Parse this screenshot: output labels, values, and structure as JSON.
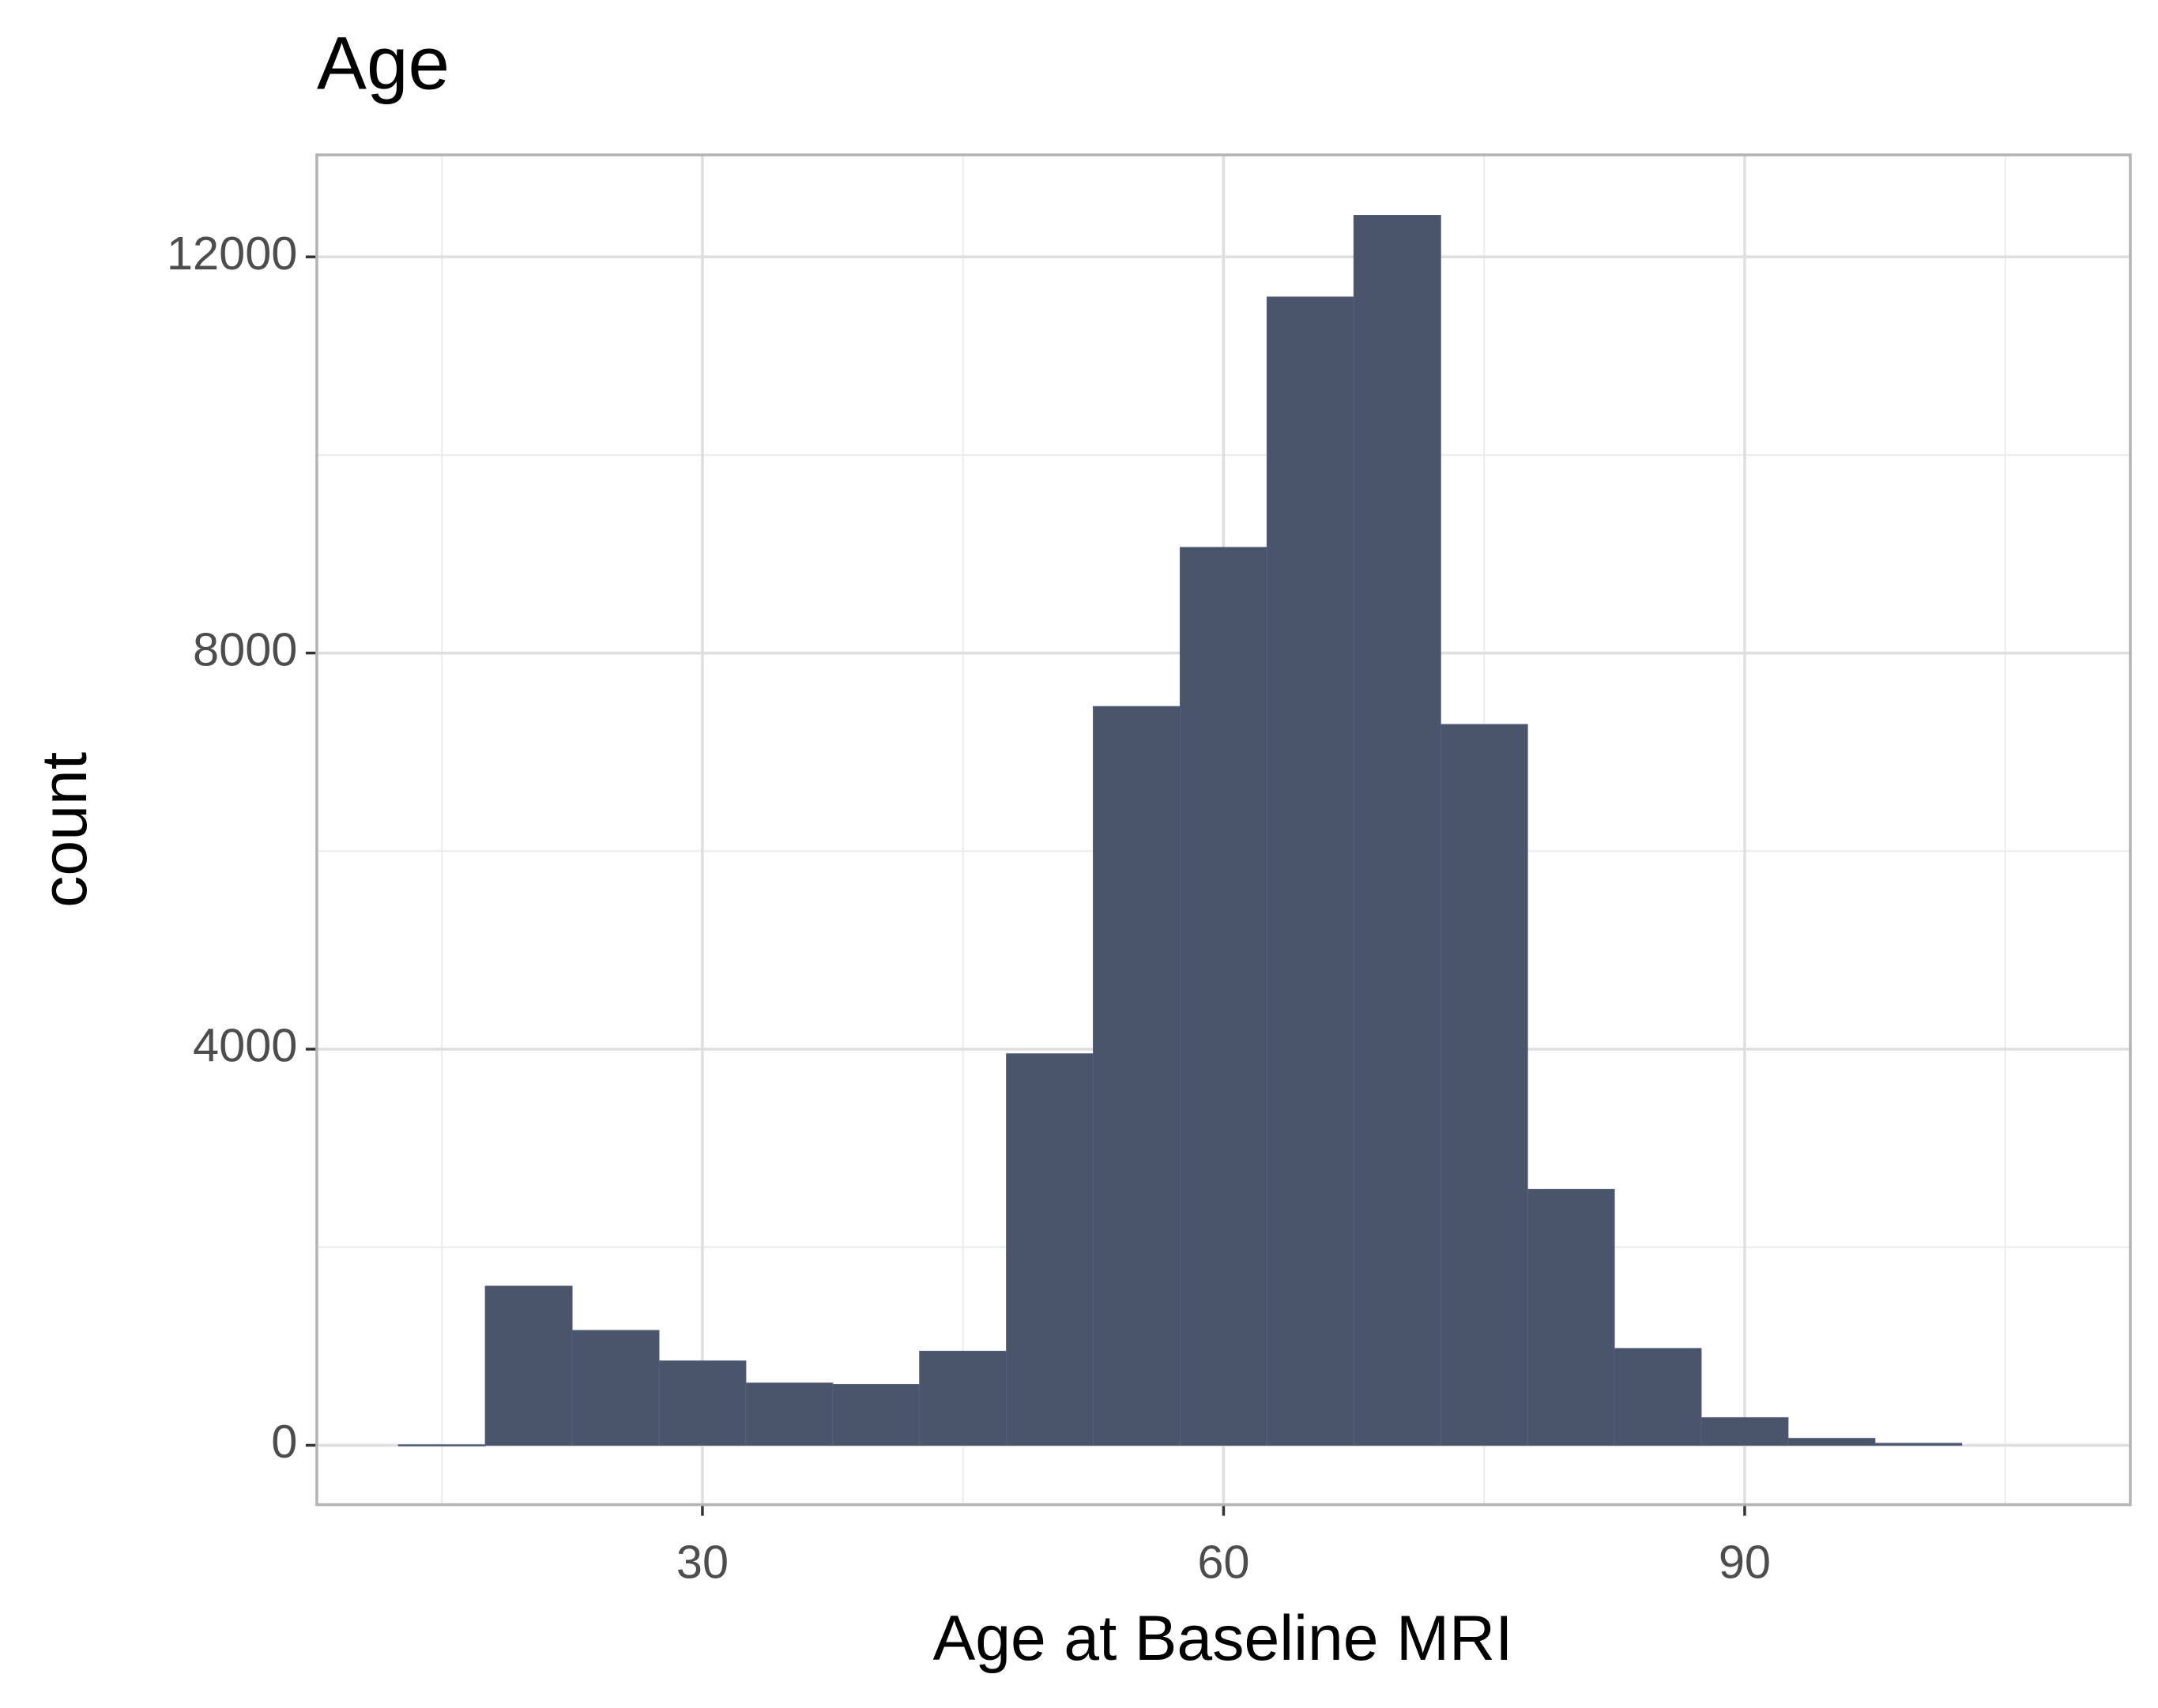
{
  "chart_data": {
    "type": "histogram",
    "title": "Age",
    "x_label": "Age at Baseline MRI",
    "y_label": "count",
    "bins": [
      12.5,
      17.5,
      22.5,
      27.5,
      32.5,
      37.5,
      42.5,
      47.5,
      52.5,
      57.5,
      62.5,
      67.5,
      72.5,
      77.5,
      82.5,
      87.5,
      92.5,
      97.5,
      102.5
    ],
    "values": [
      5,
      1607,
      1160,
      852,
      629,
      614,
      950,
      3954,
      7460,
      9067,
      11595,
      12420,
      7279,
      2585,
      978,
      279,
      70,
      20
    ],
    "color": "#4a546b",
    "xlim": [
      7.8,
      112.2
    ],
    "xticks": [
      30,
      60,
      90
    ],
    "ylim": [
      -600,
      13030
    ],
    "yticks": [
      0,
      4000,
      8000,
      12000
    ],
    "grid": true
  }
}
